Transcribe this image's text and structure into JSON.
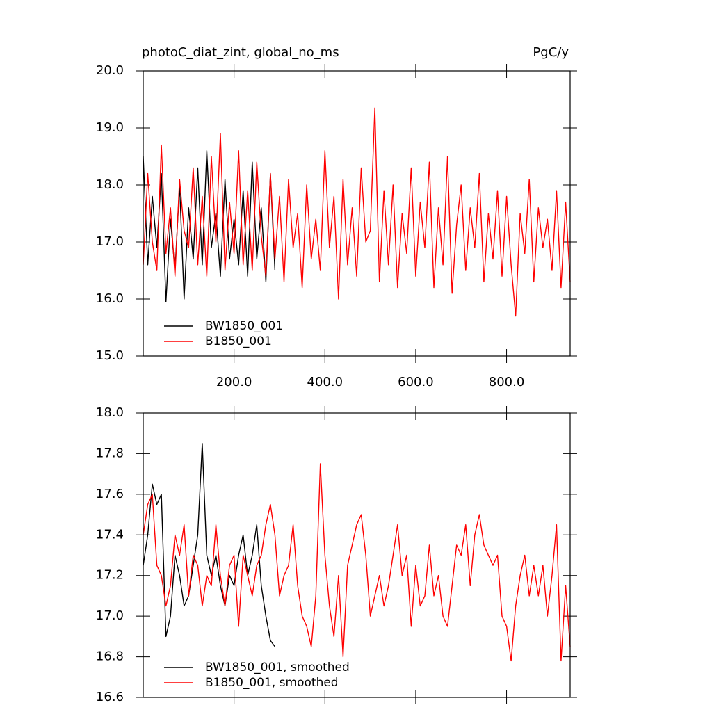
{
  "chart_data": [
    {
      "type": "line",
      "title": "photoC_diat_zint, global_no_ms",
      "units": "PgC/y",
      "xlim": [
        0,
        940
      ],
      "ylim": [
        15,
        20
      ],
      "xticks": [
        {
          "value": 200,
          "label": "200.0"
        },
        {
          "value": 400,
          "label": "400.0"
        },
        {
          "value": 600,
          "label": "600.0"
        },
        {
          "value": 800,
          "label": "800.0"
        }
      ],
      "yticks": [
        {
          "value": 15,
          "label": "15.0"
        },
        {
          "value": 16,
          "label": "16.0"
        },
        {
          "value": 17,
          "label": "17.0"
        },
        {
          "value": 18,
          "label": "18.0"
        },
        {
          "value": 19,
          "label": "19.0"
        },
        {
          "value": 20,
          "label": "20.0"
        }
      ],
      "xtick_labels": true,
      "legend": "lower left",
      "series": [
        {
          "name": "BW1850_001",
          "color": "#000000",
          "x": [
            0,
            10,
            20,
            30,
            40,
            50,
            60,
            70,
            80,
            90,
            100,
            110,
            120,
            130,
            140,
            150,
            160,
            170,
            180,
            190,
            200,
            210,
            220,
            230,
            240,
            250,
            260,
            270,
            280,
            290
          ],
          "values": [
            18.5,
            16.6,
            17.8,
            16.9,
            18.2,
            15.95,
            17.4,
            16.5,
            18.0,
            16.0,
            17.6,
            16.7,
            18.3,
            16.6,
            18.6,
            16.9,
            17.5,
            16.4,
            18.1,
            16.7,
            17.4,
            16.6,
            17.9,
            16.4,
            18.4,
            16.7,
            17.6,
            16.3,
            18.2,
            16.5
          ]
        },
        {
          "name": "B1850_001",
          "color": "#ff0000",
          "x": [
            0,
            10,
            20,
            30,
            40,
            50,
            60,
            70,
            80,
            90,
            100,
            110,
            120,
            130,
            140,
            150,
            160,
            170,
            180,
            190,
            200,
            210,
            220,
            230,
            240,
            250,
            260,
            270,
            280,
            290,
            300,
            310,
            320,
            330,
            340,
            350,
            360,
            370,
            380,
            390,
            400,
            410,
            420,
            430,
            440,
            450,
            460,
            470,
            480,
            490,
            500,
            510,
            520,
            530,
            540,
            550,
            560,
            570,
            580,
            590,
            600,
            610,
            620,
            630,
            640,
            650,
            660,
            670,
            680,
            690,
            700,
            710,
            720,
            730,
            740,
            750,
            760,
            770,
            780,
            790,
            800,
            810,
            820,
            830,
            840,
            850,
            860,
            870,
            880,
            890,
            900,
            910,
            920,
            930,
            940
          ],
          "values": [
            16.6,
            18.2,
            17.0,
            16.5,
            18.7,
            16.8,
            17.6,
            16.4,
            18.1,
            17.2,
            16.9,
            18.3,
            16.6,
            17.8,
            16.4,
            18.5,
            17.0,
            18.9,
            16.5,
            17.7,
            16.8,
            18.6,
            16.6,
            17.9,
            16.5,
            18.4,
            17.1,
            16.4,
            18.2,
            16.7,
            17.8,
            16.3,
            18.1,
            16.9,
            17.5,
            16.2,
            18.0,
            16.7,
            17.4,
            16.5,
            18.6,
            16.9,
            17.8,
            16.0,
            18.1,
            16.6,
            17.6,
            16.4,
            18.3,
            17.0,
            17.2,
            19.35,
            16.3,
            17.9,
            16.6,
            18.0,
            16.2,
            17.5,
            16.8,
            18.3,
            16.4,
            17.7,
            16.9,
            18.4,
            16.2,
            17.6,
            16.6,
            18.5,
            16.1,
            17.3,
            18.0,
            16.5,
            17.6,
            16.9,
            18.2,
            16.3,
            17.5,
            16.7,
            17.9,
            16.4,
            17.8,
            16.6,
            15.7,
            17.5,
            16.8,
            18.1,
            16.3,
            17.6,
            16.9,
            17.4,
            16.5,
            17.9,
            16.2,
            17.7,
            16.3
          ]
        }
      ]
    },
    {
      "type": "line",
      "xlim": [
        0,
        940
      ],
      "ylim": [
        16.6,
        18
      ],
      "xticks": [
        200,
        400,
        600,
        800
      ],
      "xtick_labels": false,
      "yticks": [
        16.6,
        16.8,
        {
          "value": 17,
          "label": "17.0"
        },
        17.2,
        17.4,
        17.6,
        17.8,
        {
          "value": 18,
          "label": "18.0"
        }
      ],
      "legend": "lower left",
      "series": [
        {
          "name": "BW1850_001, smoothed",
          "color": "#000000",
          "x": [
            0,
            10,
            20,
            30,
            40,
            50,
            60,
            70,
            80,
            90,
            100,
            110,
            120,
            130,
            140,
            150,
            160,
            170,
            180,
            190,
            200,
            210,
            220,
            230,
            240,
            250,
            260,
            270,
            280,
            290
          ],
          "values": [
            17.25,
            17.4,
            17.65,
            17.55,
            17.6,
            16.9,
            17.0,
            17.3,
            17.2,
            17.05,
            17.1,
            17.25,
            17.4,
            17.85,
            17.3,
            17.2,
            17.3,
            17.15,
            17.05,
            17.2,
            17.15,
            17.3,
            17.4,
            17.2,
            17.3,
            17.45,
            17.15,
            17.0,
            16.88,
            16.85
          ]
        },
        {
          "name": "B1850_001, smoothed",
          "color": "#ff0000",
          "x": [
            0,
            10,
            20,
            30,
            40,
            50,
            60,
            70,
            80,
            90,
            100,
            110,
            120,
            130,
            140,
            150,
            160,
            170,
            180,
            190,
            200,
            210,
            220,
            230,
            240,
            250,
            260,
            270,
            280,
            290,
            300,
            310,
            320,
            330,
            340,
            350,
            360,
            370,
            380,
            390,
            400,
            410,
            420,
            430,
            440,
            450,
            460,
            470,
            480,
            490,
            500,
            510,
            520,
            530,
            540,
            550,
            560,
            570,
            580,
            590,
            600,
            610,
            620,
            630,
            640,
            650,
            660,
            670,
            680,
            690,
            700,
            710,
            720,
            730,
            740,
            750,
            760,
            770,
            780,
            790,
            800,
            810,
            820,
            830,
            840,
            850,
            860,
            870,
            880,
            890,
            900,
            910,
            920,
            930,
            940
          ],
          "values": [
            17.4,
            17.55,
            17.6,
            17.25,
            17.2,
            17.05,
            17.15,
            17.4,
            17.3,
            17.45,
            17.1,
            17.3,
            17.25,
            17.05,
            17.2,
            17.15,
            17.45,
            17.2,
            17.05,
            17.25,
            17.3,
            16.95,
            17.3,
            17.2,
            17.1,
            17.25,
            17.3,
            17.45,
            17.55,
            17.4,
            17.1,
            17.2,
            17.25,
            17.45,
            17.15,
            17.0,
            16.95,
            16.85,
            17.1,
            17.75,
            17.3,
            17.05,
            16.9,
            17.2,
            16.8,
            17.25,
            17.35,
            17.45,
            17.5,
            17.3,
            17.0,
            17.1,
            17.2,
            17.05,
            17.15,
            17.3,
            17.45,
            17.2,
            17.3,
            16.95,
            17.25,
            17.05,
            17.1,
            17.35,
            17.1,
            17.2,
            17.0,
            16.95,
            17.15,
            17.35,
            17.3,
            17.45,
            17.15,
            17.4,
            17.5,
            17.35,
            17.3,
            17.25,
            17.3,
            17.0,
            16.95,
            16.78,
            17.05,
            17.2,
            17.3,
            17.1,
            17.25,
            17.1,
            17.25,
            17.0,
            17.2,
            17.45,
            16.78,
            17.15,
            16.85
          ]
        }
      ]
    }
  ]
}
